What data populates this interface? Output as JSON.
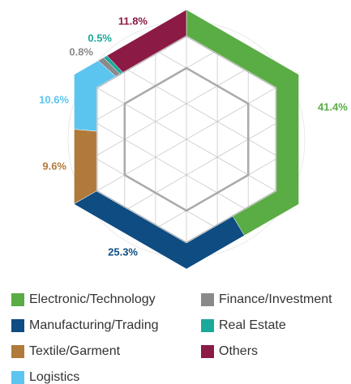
{
  "chart_data": {
    "type": "pie",
    "shape": "hexagon",
    "categories": [
      "Electronic/Technology",
      "Manufacturing/Trading",
      "Textile/Garment",
      "Logistics",
      "Finance/Investment",
      "Real Estate",
      "Others"
    ],
    "values": [
      41.4,
      25.3,
      9.6,
      10.6,
      0.8,
      0.5,
      11.8
    ],
    "value_labels": [
      "41.4%",
      "25.3%",
      "9.6%",
      "10.6%",
      "0.8%",
      "0.5%",
      "11.8%"
    ],
    "colors": [
      "#5aac44",
      "#0e4c82",
      "#b07a3a",
      "#5bc5ef",
      "#8a8a8a",
      "#1aa99a",
      "#8b1a45"
    ],
    "legend": "bottom"
  }
}
